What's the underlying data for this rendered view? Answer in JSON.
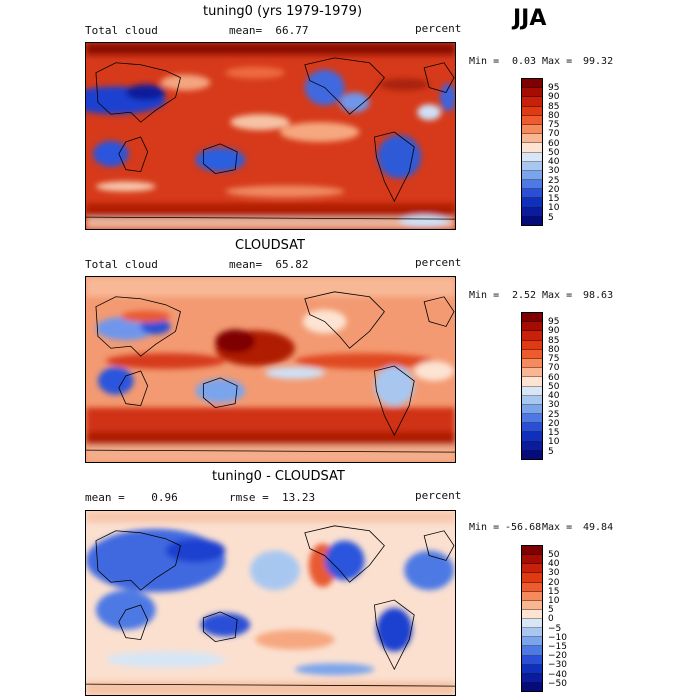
{
  "season_label": "JJA",
  "panels": [
    {
      "title": "tuning0 (yrs 1979-1979)",
      "left_label": "Total cloud",
      "center_label": "mean=  66.77",
      "right_label": "percent",
      "min_label": "Min =",
      "min_value": "0.03",
      "max_label": "Max =",
      "max_value": "99.32",
      "colorbar_labels": [
        "95",
        "90",
        "85",
        "80",
        "75",
        "70",
        "60",
        "50",
        "40",
        "30",
        "25",
        "20",
        "15",
        "10",
        "5"
      ],
      "colors": [
        "#7f0000",
        "#a50d02",
        "#c8210b",
        "#e03a12",
        "#ee5b2e",
        "#f58a5d",
        "#f9b693",
        "#fde3d2",
        "#d6e6f6",
        "#a7c7f1",
        "#7aa4ec",
        "#4e79e4",
        "#2a4fd6",
        "#1030bc",
        "#0a1b9b",
        "#050b78"
      ]
    },
    {
      "title": "CLOUDSAT",
      "left_label": "Total cloud",
      "center_label": "mean=  65.82",
      "right_label": "percent",
      "min_label": "Min =",
      "min_value": "2.52",
      "max_label": "Max =",
      "max_value": "98.63",
      "colorbar_labels": [
        "95",
        "90",
        "85",
        "80",
        "75",
        "70",
        "60",
        "50",
        "40",
        "30",
        "25",
        "20",
        "15",
        "10",
        "5"
      ],
      "colors": [
        "#7f0000",
        "#a50d02",
        "#c8210b",
        "#e03a12",
        "#ee5b2e",
        "#f58a5d",
        "#f9b693",
        "#fde3d2",
        "#d6e6f6",
        "#a7c7f1",
        "#7aa4ec",
        "#4e79e4",
        "#2a4fd6",
        "#1030bc",
        "#0a1b9b",
        "#050b78"
      ]
    },
    {
      "title": "tuning0 - CLOUDSAT",
      "left_label": "mean =    0.96",
      "center_label": "rmse =  13.23",
      "right_label": "percent",
      "min_label": "Min =",
      "min_value": "-56.68",
      "max_label": "Max =",
      "max_value": "49.84",
      "colorbar_labels": [
        "50",
        "40",
        "30",
        "20",
        "15",
        "10",
        "5",
        "0",
        "−5",
        "−10",
        "−15",
        "−20",
        "−30",
        "−40",
        "−50"
      ],
      "colors": [
        "#7f0000",
        "#a50d02",
        "#c8210b",
        "#e03a12",
        "#ee5b2e",
        "#f58a5d",
        "#f9b693",
        "#fde3d2",
        "#d6e6f6",
        "#a7c7f1",
        "#7aa4ec",
        "#4e79e4",
        "#2a4fd6",
        "#1030bc",
        "#0a1b9b",
        "#050b78"
      ]
    }
  ]
}
